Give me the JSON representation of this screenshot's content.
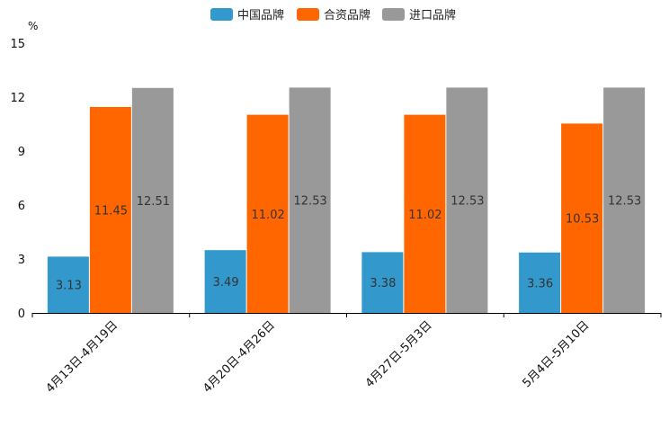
{
  "chart_data": {
    "type": "bar",
    "title": "",
    "xlabel": "",
    "ylabel": "%",
    "ylim": [
      0,
      15
    ],
    "yticks": [
      0,
      3,
      6,
      9,
      12,
      15
    ],
    "grid": false,
    "legend_position": "top-center",
    "categories": [
      "4月13日-4月19日",
      "4月20日-4月26日",
      "4月27日-5月3日",
      "5月4日-5月10日"
    ],
    "series": [
      {
        "name": "中国品牌",
        "color": "#3399cc",
        "values": [
          3.13,
          3.49,
          3.38,
          3.36
        ],
        "labels": [
          "3.13",
          "3.49",
          "3.38",
          "3.36"
        ]
      },
      {
        "name": "合资品牌",
        "color": "#ff6600",
        "values": [
          11.45,
          11.02,
          11.02,
          10.53
        ],
        "labels": [
          "11.45",
          "11.02",
          "11.02",
          "10.53"
        ]
      },
      {
        "name": "进口品牌",
        "color": "#999999",
        "values": [
          12.51,
          12.53,
          12.53,
          12.53
        ],
        "labels": [
          "12.51",
          "12.53",
          "12.53",
          "12.53"
        ]
      }
    ]
  }
}
